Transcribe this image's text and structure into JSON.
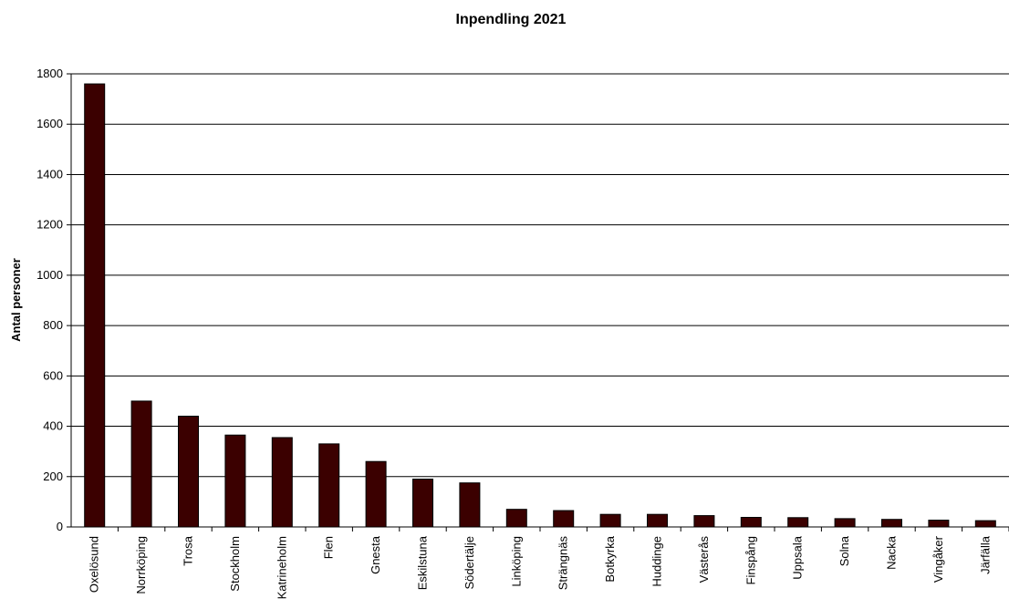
{
  "chart_data": {
    "type": "bar",
    "title": "Inpendling 2021",
    "xlabel": "",
    "ylabel": "Antal personer",
    "ylim": [
      0,
      1800
    ],
    "yticks": [
      "0",
      "200",
      "400",
      "600",
      "800",
      "1000",
      "1200",
      "1400",
      "1600",
      "1800"
    ],
    "grid": true,
    "legend": "none",
    "bar_color": "#3b0000",
    "categories": [
      "Oxelösund",
      "Norrköping",
      "Trosa",
      "Stockholm",
      "Katrineholm",
      "Flen",
      "Gnesta",
      "Eskilstuna",
      "Södertälje",
      "Linköping",
      "Strängnäs",
      "Botkyrka",
      "Huddinge",
      "Västerås",
      "Finspång",
      "Uppsala",
      "Solna",
      "Nacka",
      "Vingåker",
      "Järfälla"
    ],
    "values": [
      1760,
      500,
      440,
      365,
      355,
      330,
      260,
      190,
      175,
      70,
      65,
      50,
      50,
      45,
      38,
      37,
      33,
      30,
      27,
      25
    ]
  }
}
